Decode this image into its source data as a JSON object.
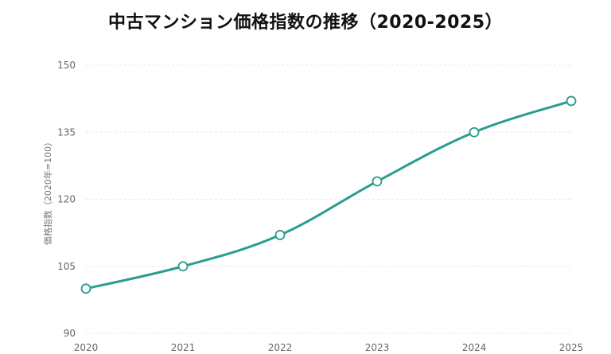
{
  "chart_data": {
    "type": "line",
    "title": "中古マンション価格指数の推移（2020-2025）",
    "ylabel": "価格指数（2020年=100）",
    "xlabel": "",
    "x": [
      "2020",
      "2021",
      "2022",
      "2023",
      "2024",
      "2025"
    ],
    "series": [
      {
        "values": [
          100,
          105,
          112,
          124,
          135,
          142
        ]
      }
    ],
    "ylim": [
      90,
      150
    ],
    "yticks": [
      "90",
      "105",
      "120",
      "135",
      "150"
    ],
    "grid": true,
    "line_color": "#2a9d8f",
    "marker_fill": "#ffffff"
  }
}
